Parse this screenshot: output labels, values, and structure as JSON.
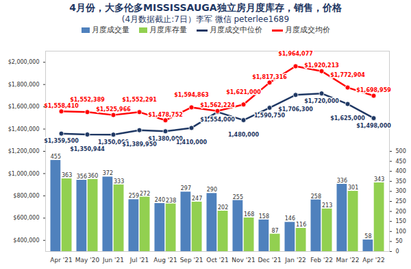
{
  "chart_data": {
    "type": "bar",
    "title": "4月份，大多伦多MISSISSAUGA独立房月度库存，销售，价格",
    "subtitle": "(4月数据截止:7日）李军  微信 peterlee1689",
    "categories": [
      "Apr '21",
      "May '20",
      "Jun '21",
      "Jul '21",
      "Aug '21",
      "Sep '21",
      "Oct '21",
      "Nov '21",
      "Dec '21",
      "Jan '22",
      "Feb '22",
      "Mar '22",
      "Apr '22"
    ],
    "series": [
      {
        "name": "月度成交量",
        "type": "bar",
        "color": "#4f81bd",
        "axis": "y2",
        "values": [
          455,
          356,
          372,
          259,
          240,
          297,
          290,
          255,
          158,
          146,
          258,
          336,
          58
        ]
      },
      {
        "name": "月度库存量",
        "type": "bar",
        "color": "#92d050",
        "axis": "y2",
        "values": [
          363,
          360,
          333,
          272,
          238,
          247,
          202,
          168,
          87,
          116,
          213,
          301,
          343
        ]
      },
      {
        "name": "月度成交中位价",
        "type": "line",
        "color": "#1f3864",
        "marker": "circle",
        "values": [
          1359500,
          1350944,
          1350000,
          1389950,
          1380000,
          1410000,
          1554000,
          1480000,
          1590750,
          1706300,
          1720000,
          1625000,
          1498000
        ],
        "value_labels": [
          "$1,359,500",
          "$1,350,944",
          "1,350,000",
          "$1,389,950",
          "$1,380,000",
          "1,410,000",
          "$1,554,000",
          "1,480,000",
          "1,590,750",
          "$1,706,300",
          "$1,720,000",
          "$1,625,000",
          "$1,498,000"
        ]
      },
      {
        "name": "月度成交均价",
        "type": "line",
        "color": "#ff0000",
        "marker": "circle",
        "values": [
          1558410,
          1552389,
          1525966,
          1552291,
          1478752,
          1594863,
          1562224,
          1621000,
          1817316,
          1964077,
          1920213,
          1772904,
          1698959
        ],
        "value_labels": [
          "$1,558,410",
          "$1,552,389",
          "$1,525,966",
          "$1,552,291",
          "$1,478,752",
          "$1,594,863",
          "$1,562,224",
          "$1,621,000",
          "$1,817,316",
          "$1,964,077",
          "$1,920,213",
          "$1,772,904",
          "$1,698,959"
        ]
      }
    ],
    "ylim": [
      300000,
      2100000
    ],
    "yticks": [
      {
        "value": 400000,
        "label": "$400,000"
      },
      {
        "value": 600000,
        "label": "$600,000"
      },
      {
        "value": 800000,
        "label": "$800,000"
      },
      {
        "value": 1000000,
        "label": "$1,000,000"
      },
      {
        "value": 1200000,
        "label": "$1,200,000"
      },
      {
        "value": 1400000,
        "label": "$1,400,000"
      },
      {
        "value": 1600000,
        "label": "$1,600,000"
      },
      {
        "value": 1800000,
        "label": "$1,800,000"
      },
      {
        "value": 2000000,
        "label": "$2,000,000"
      }
    ],
    "y2lim": [
      0,
      1000
    ],
    "y2ticks": [
      0,
      50,
      100,
      150,
      200,
      250,
      300,
      350,
      400,
      450,
      500
    ],
    "data_labels": true,
    "legend": "top",
    "grid": false
  }
}
